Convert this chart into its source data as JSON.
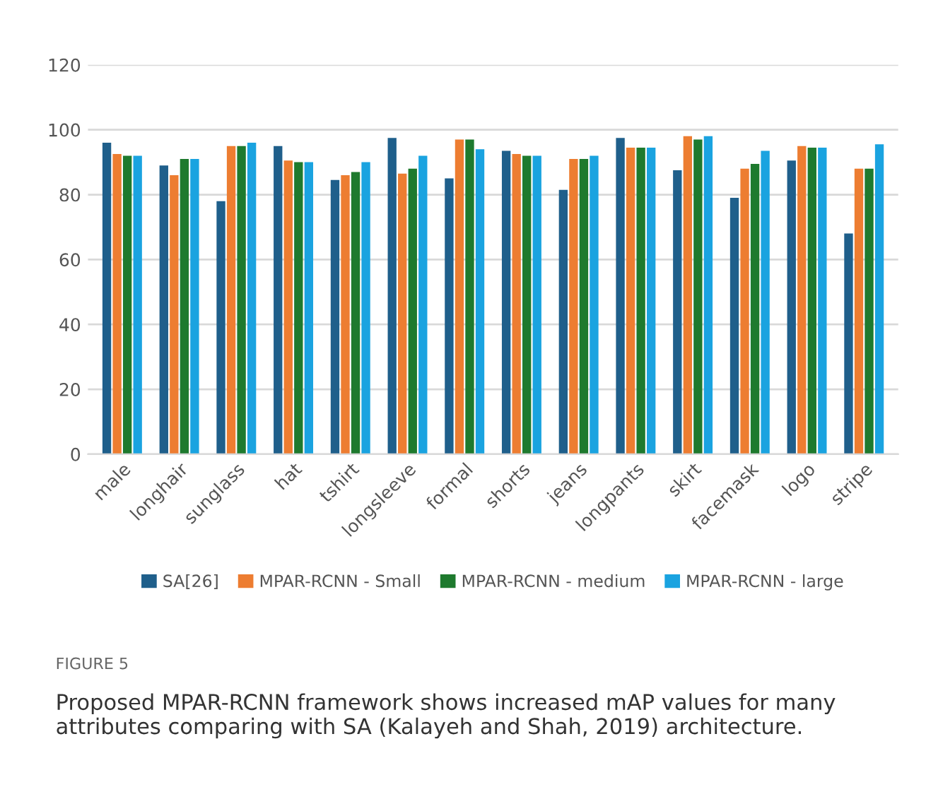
{
  "chart_data": {
    "type": "bar",
    "categories": [
      "male",
      "longhair",
      "sunglass",
      "hat",
      "tshirt",
      "longsleeve",
      "formal",
      "shorts",
      "jeans",
      "longpants",
      "skirt",
      "facemask",
      "logo",
      "stripe"
    ],
    "series": [
      {
        "name": "SA[26]",
        "color": "#1f5f8b",
        "values": [
          96,
          89,
          78,
          95,
          84.5,
          97.5,
          85,
          93.5,
          81.5,
          97.5,
          87.5,
          79,
          90.5,
          68
        ]
      },
      {
        "name": "MPAR-RCNN - Small",
        "color": "#ed7d31",
        "values": [
          92.5,
          86,
          95,
          90.5,
          86,
          86.5,
          97,
          92.5,
          91,
          94.5,
          98,
          88,
          95,
          88
        ]
      },
      {
        "name": "MPAR-RCNN - medium",
        "color": "#1e7a2e",
        "values": [
          92,
          91,
          95,
          90,
          87,
          88,
          97,
          92,
          91,
          94.5,
          97,
          89.5,
          94.5,
          88
        ]
      },
      {
        "name": "MPAR-RCNN - large",
        "color": "#1aa3e0",
        "values": [
          92,
          91,
          96,
          90,
          90,
          92,
          94,
          92,
          92,
          94.5,
          98,
          93.5,
          94.5,
          95.5
        ]
      }
    ],
    "ylim": [
      0,
      120
    ],
    "yticks": [
      0,
      20,
      40,
      60,
      80,
      100,
      120
    ],
    "grid": "y",
    "legend": "bottom",
    "annotations": [
      "FIGURE 5",
      "Proposed MPAR-RCNN framework shows increased mAP values for many attributes comparing with SA (Kalayeh and Shah, 2019) architecture."
    ]
  }
}
